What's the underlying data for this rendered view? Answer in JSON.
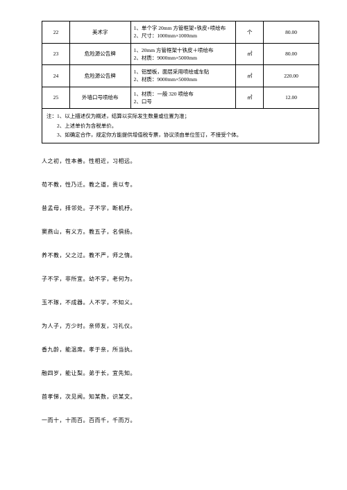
{
  "table": {
    "border_color": "#000000",
    "background": "#ffffff",
    "rows": [
      {
        "idx": "22",
        "name": "美术字",
        "desc": "1、单个字 20mm 方管框架+铁皮+喷绘布\n2、尺寸：1000mm×1000mm",
        "unit": "个",
        "price": "80.00"
      },
      {
        "idx": "23",
        "name": "危险源公告牌",
        "desc": "1、20mm 方管框架十铁皮＋喷绘布\n2、材质：9000mm×5000mm",
        "unit": "㎡",
        "price": "80.00"
      },
      {
        "idx": "24",
        "name": "危险源公告牌",
        "desc": "1、铝塑板，面层采用喷绘或车贴\n2、材质：9000mm×5000mm",
        "unit": "㎡",
        "price": "220.00"
      },
      {
        "idx": "25",
        "name": "外墙口号喷绘布",
        "desc": "1、材质：一般 320 喷绘布\n2、口号",
        "unit": "㎡",
        "price": "12.00"
      }
    ],
    "notes": "注：1、以上描述仅为概述，结算以实际发生数量或位置为准；\n　　2、上述单价为含税单价。\n　　3、如确定合作，规定你方能提供增值税专票，协议须由单位签订，不接受个体。"
  },
  "verses": [
    "人之初，性本善。性相近，习相远。",
    "苟不教，性乃迁。教之道，贵以专。",
    "昔孟母，择邻处。子不学，断机杼。",
    "窦燕山，有义方。教五子，名俱扬。",
    "养不教，父之过。教不严，师之惰。",
    "子不学，非所宜。幼不学，老何为。",
    "玉不琢，不成器。人不学，不知义。",
    "为人子，方少时。亲师友，习礼仪。",
    "香九龄，能温席。孝于亲，所当执。",
    "融四岁，能让梨。弟于长，宜先知。",
    "首孝悌，次见闻。知某数，识某文。",
    "一而十，十而百。百而千，千而万。"
  ]
}
